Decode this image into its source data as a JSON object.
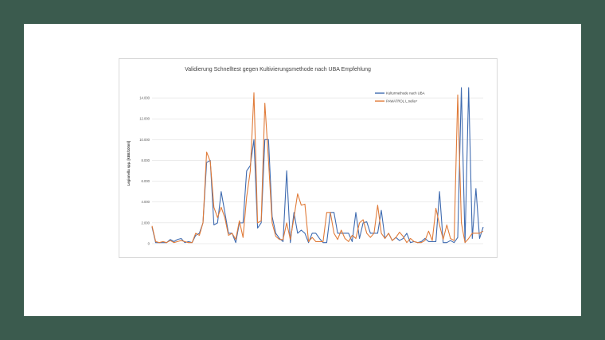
{
  "colors": {
    "background": "#3b5b4e",
    "slide": "#ffffff",
    "series_blue": "#3f6bb0",
    "series_orange": "#e07b39",
    "gridline": "#d9d9d9"
  },
  "chart_data": {
    "type": "line",
    "title": "Validierung Schnelltest gegen Kultivierungsmethode  nach UBA Empfehlung",
    "xlabel": "",
    "ylabel": "Legionella spp. [KBE/100ml]",
    "ylim": [
      0,
      15000
    ],
    "yticks": [
      0,
      2000,
      4000,
      6000,
      8000,
      10000,
      12000,
      14000
    ],
    "ytick_labels": [
      "0",
      "2.000",
      "4.000",
      "6.000",
      "8.000",
      "10.000",
      "12.000",
      "14.000"
    ],
    "grid": true,
    "legend_position": "top-right",
    "series": [
      {
        "name": "Kulturmethode nach UBA",
        "color": "#3f6bb0",
        "values": [
          1600,
          100,
          100,
          100,
          100,
          400,
          200,
          400,
          500,
          100,
          200,
          100,
          800,
          1000,
          2000,
          7800,
          8000,
          1800,
          2000,
          5000,
          3000,
          1000,
          1000,
          100,
          2000,
          2000,
          7000,
          7500,
          10000,
          1500,
          2000,
          10000,
          10000,
          2600,
          1000,
          500,
          200,
          7000,
          100,
          3000,
          1000,
          1300,
          1000,
          100,
          1000,
          1000,
          500,
          100,
          100,
          3000,
          3000,
          1000,
          1000,
          1000,
          1000,
          200,
          3000,
          500,
          2000,
          2100,
          1000,
          1000,
          1000,
          3200,
          500,
          1000,
          300,
          600,
          300,
          500,
          1000,
          100,
          200,
          100,
          200,
          500,
          200,
          200,
          200,
          5000,
          100,
          100,
          300,
          100,
          600,
          15000,
          100,
          15000,
          500,
          5300,
          500,
          1600
        ]
      },
      {
        "name": "PAWATROL L.nella+",
        "color": "#e07b39",
        "values": [
          1700,
          200,
          100,
          200,
          100,
          300,
          100,
          200,
          300,
          200,
          100,
          100,
          1000,
          800,
          2000,
          8800,
          7900,
          3500,
          2500,
          3500,
          2500,
          800,
          1000,
          400,
          2200,
          600,
          4500,
          7000,
          14500,
          2000,
          2200,
          13500,
          8000,
          2000,
          700,
          400,
          400,
          2000,
          400,
          2500,
          4800,
          3700,
          3800,
          200,
          600,
          200,
          200,
          200,
          3000,
          3000,
          1000,
          400,
          1300,
          500,
          200,
          800,
          500,
          2000,
          2300,
          1000,
          600,
          1000,
          3700,
          1000,
          500,
          1000,
          300,
          600,
          1100,
          700,
          100,
          500,
          200,
          100,
          100,
          300,
          1200,
          300,
          3400,
          1800,
          400,
          1800,
          500,
          300,
          14300,
          2000,
          100,
          500,
          1000,
          1000,
          1000,
          1200
        ]
      }
    ]
  }
}
